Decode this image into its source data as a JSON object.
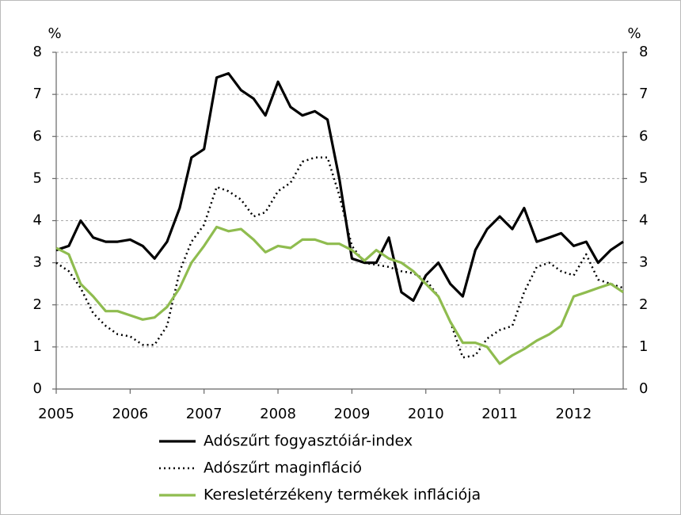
{
  "chart_data": {
    "type": "line",
    "ylabel": "%",
    "y2label": "%",
    "x": [
      2005,
      2005.17,
      2005.33,
      2005.5,
      2005.67,
      2005.83,
      2006,
      2006.17,
      2006.33,
      2006.5,
      2006.67,
      2006.83,
      2007,
      2007.17,
      2007.33,
      2007.5,
      2007.67,
      2007.83,
      2008,
      2008.17,
      2008.33,
      2008.5,
      2008.67,
      2008.83,
      2009,
      2009.17,
      2009.33,
      2009.5,
      2009.67,
      2009.83,
      2010,
      2010.17,
      2010.33,
      2010.5,
      2010.67,
      2010.83,
      2011,
      2011.17,
      2011.33,
      2011.5,
      2011.67,
      2011.83,
      2012,
      2012.17,
      2012.33,
      2012.5,
      2012.67
    ],
    "series": [
      {
        "name": "Adószűrt fogyasztóiár-index",
        "color": "#000000",
        "line_style": "solid",
        "values": [
          3.3,
          3.4,
          4.0,
          3.6,
          3.5,
          3.5,
          3.55,
          3.4,
          3.1,
          3.5,
          4.3,
          5.5,
          5.7,
          7.4,
          7.5,
          7.1,
          6.9,
          6.5,
          7.3,
          6.7,
          6.5,
          6.6,
          6.4,
          5.0,
          3.1,
          3.0,
          3.0,
          3.6,
          2.3,
          2.1,
          2.7,
          3.0,
          2.5,
          2.2,
          3.3,
          3.8,
          4.1,
          3.8,
          4.3,
          3.5,
          3.6,
          3.7,
          3.4,
          3.5,
          3.0,
          3.3,
          3.5
        ]
      },
      {
        "name": "Adószűrt maginfláció",
        "color": "#000000",
        "line_style": "dotted",
        "values": [
          3.0,
          2.8,
          2.4,
          1.8,
          1.5,
          1.3,
          1.25,
          1.05,
          1.05,
          1.5,
          2.8,
          3.5,
          3.9,
          4.8,
          4.7,
          4.5,
          4.1,
          4.2,
          4.7,
          4.9,
          5.4,
          5.5,
          5.5,
          4.6,
          3.4,
          3.0,
          2.95,
          2.9,
          2.8,
          2.75,
          2.6,
          2.2,
          1.6,
          0.75,
          0.8,
          1.2,
          1.4,
          1.5,
          2.3,
          2.9,
          3.0,
          2.8,
          2.7,
          3.2,
          2.6,
          2.5,
          2.4
        ]
      },
      {
        "name": "Keresletérzékeny termékek inflációja",
        "color": "#8fbc4f",
        "line_style": "solid",
        "values": [
          3.35,
          3.2,
          2.5,
          2.2,
          1.85,
          1.85,
          1.75,
          1.65,
          1.7,
          1.95,
          2.4,
          3.0,
          3.4,
          3.85,
          3.75,
          3.8,
          3.55,
          3.25,
          3.4,
          3.35,
          3.55,
          3.55,
          3.45,
          3.45,
          3.3,
          3.05,
          3.3,
          3.1,
          3.0,
          2.8,
          2.5,
          2.2,
          1.6,
          1.1,
          1.1,
          1.0,
          0.6,
          0.8,
          0.95,
          1.15,
          1.3,
          1.5,
          2.2,
          2.3,
          2.4,
          2.5,
          2.3
        ]
      }
    ],
    "xlim": [
      2005,
      2012.67
    ],
    "xticks": [
      2005,
      2006,
      2007,
      2008,
      2009,
      2010,
      2011,
      2012
    ],
    "ylim": [
      0,
      8
    ],
    "yticks": [
      0,
      1,
      2,
      3,
      4,
      5,
      6,
      7,
      8
    ],
    "y2lim": [
      0,
      8
    ],
    "y2ticks": [
      0,
      1,
      2,
      3,
      4,
      5,
      6,
      7,
      8
    ],
    "grid": true,
    "legend": "bottom"
  }
}
